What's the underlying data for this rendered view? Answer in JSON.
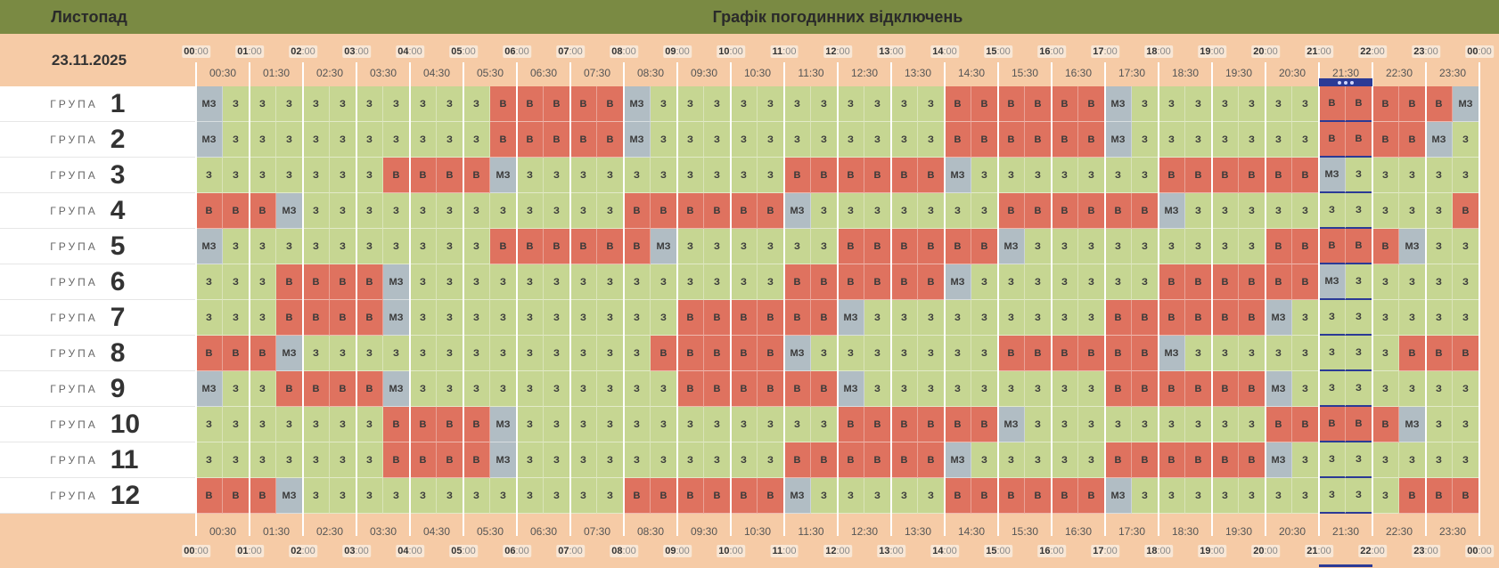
{
  "header": {
    "month": "Листопад",
    "title": "Графік погодинних відключень",
    "date": "23.11.2025"
  },
  "hours": [
    {
      "h": "00",
      "m": ":00"
    },
    {
      "h": "01",
      "m": ":00"
    },
    {
      "h": "02",
      "m": ":00"
    },
    {
      "h": "03",
      "m": ":00"
    },
    {
      "h": "04",
      "m": ":00"
    },
    {
      "h": "05",
      "m": ":00"
    },
    {
      "h": "06",
      "m": ":00"
    },
    {
      "h": "07",
      "m": ":00"
    },
    {
      "h": "08",
      "m": ":00"
    },
    {
      "h": "09",
      "m": ":00"
    },
    {
      "h": "10",
      "m": ":00"
    },
    {
      "h": "11",
      "m": ":00"
    },
    {
      "h": "12",
      "m": ":00"
    },
    {
      "h": "13",
      "m": ":00"
    },
    {
      "h": "14",
      "m": ":00"
    },
    {
      "h": "15",
      "m": ":00"
    },
    {
      "h": "16",
      "m": ":00"
    },
    {
      "h": "17",
      "m": ":00"
    },
    {
      "h": "18",
      "m": ":00"
    },
    {
      "h": "19",
      "m": ":00"
    },
    {
      "h": "20",
      "m": ":00"
    },
    {
      "h": "21",
      "m": ":00"
    },
    {
      "h": "22",
      "m": ":00"
    },
    {
      "h": "23",
      "m": ":00"
    },
    {
      "h": "00",
      "m": ":00"
    }
  ],
  "half_hours": [
    "00:30",
    "01:30",
    "02:30",
    "03:30",
    "04:30",
    "05:30",
    "06:30",
    "07:30",
    "08:30",
    "09:30",
    "10:30",
    "11:30",
    "12:30",
    "13:30",
    "14:30",
    "15:30",
    "16:30",
    "17:30",
    "18:30",
    "19:30",
    "20:30",
    "21:30",
    "22:30",
    "23:30"
  ],
  "groups": [
    {
      "label": "ГРУПА",
      "number": "1",
      "cells": [
        "МЗ",
        "З",
        "З",
        "З",
        "З",
        "З",
        "З",
        "З",
        "З",
        "З",
        "З",
        "В",
        "В",
        "В",
        "В",
        "В",
        "МЗ",
        "З",
        "З",
        "З",
        "З",
        "З",
        "З",
        "З",
        "З",
        "З",
        "З",
        "З",
        "В",
        "В",
        "В",
        "В",
        "В",
        "В",
        "МЗ",
        "З",
        "З",
        "З",
        "З",
        "З",
        "З",
        "З",
        "В",
        "В",
        "В",
        "В",
        "В",
        "МЗ"
      ]
    },
    {
      "label": "ГРУПА",
      "number": "2",
      "cells": [
        "МЗ",
        "З",
        "З",
        "З",
        "З",
        "З",
        "З",
        "З",
        "З",
        "З",
        "З",
        "В",
        "В",
        "В",
        "В",
        "В",
        "МЗ",
        "З",
        "З",
        "З",
        "З",
        "З",
        "З",
        "З",
        "З",
        "З",
        "З",
        "З",
        "В",
        "В",
        "В",
        "В",
        "В",
        "В",
        "МЗ",
        "З",
        "З",
        "З",
        "З",
        "З",
        "З",
        "З",
        "В",
        "В",
        "В",
        "В",
        "МЗ",
        "З"
      ]
    },
    {
      "label": "ГРУПА",
      "number": "3",
      "cells": [
        "З",
        "З",
        "З",
        "З",
        "З",
        "З",
        "З",
        "В",
        "В",
        "В",
        "В",
        "МЗ",
        "З",
        "З",
        "З",
        "З",
        "З",
        "З",
        "З",
        "З",
        "З",
        "З",
        "В",
        "В",
        "В",
        "В",
        "В",
        "В",
        "МЗ",
        "З",
        "З",
        "З",
        "З",
        "З",
        "З",
        "З",
        "В",
        "В",
        "В",
        "В",
        "В",
        "В",
        "МЗ",
        "З",
        "З",
        "З",
        "З",
        "З"
      ]
    },
    {
      "label": "ГРУПА",
      "number": "4",
      "cells": [
        "В",
        "В",
        "В",
        "МЗ",
        "З",
        "З",
        "З",
        "З",
        "З",
        "З",
        "З",
        "З",
        "З",
        "З",
        "З",
        "З",
        "В",
        "В",
        "В",
        "В",
        "В",
        "В",
        "МЗ",
        "З",
        "З",
        "З",
        "З",
        "З",
        "З",
        "З",
        "В",
        "В",
        "В",
        "В",
        "В",
        "В",
        "МЗ",
        "З",
        "З",
        "З",
        "З",
        "З",
        "З",
        "З",
        "З",
        "З",
        "З",
        "В"
      ]
    },
    {
      "label": "ГРУПА",
      "number": "5",
      "cells": [
        "МЗ",
        "З",
        "З",
        "З",
        "З",
        "З",
        "З",
        "З",
        "З",
        "З",
        "З",
        "В",
        "В",
        "В",
        "В",
        "В",
        "В",
        "МЗ",
        "З",
        "З",
        "З",
        "З",
        "З",
        "З",
        "В",
        "В",
        "В",
        "В",
        "В",
        "В",
        "МЗ",
        "З",
        "З",
        "З",
        "З",
        "З",
        "З",
        "З",
        "З",
        "З",
        "В",
        "В",
        "В",
        "В",
        "В",
        "МЗ",
        "З",
        "З"
      ]
    },
    {
      "label": "ГРУПА",
      "number": "6",
      "cells": [
        "З",
        "З",
        "З",
        "В",
        "В",
        "В",
        "В",
        "МЗ",
        "З",
        "З",
        "З",
        "З",
        "З",
        "З",
        "З",
        "З",
        "З",
        "З",
        "З",
        "З",
        "З",
        "З",
        "В",
        "В",
        "В",
        "В",
        "В",
        "В",
        "МЗ",
        "З",
        "З",
        "З",
        "З",
        "З",
        "З",
        "З",
        "В",
        "В",
        "В",
        "В",
        "В",
        "В",
        "МЗ",
        "З",
        "З",
        "З",
        "З",
        "З"
      ]
    },
    {
      "label": "ГРУПА",
      "number": "7",
      "cells": [
        "З",
        "З",
        "З",
        "В",
        "В",
        "В",
        "В",
        "МЗ",
        "З",
        "З",
        "З",
        "З",
        "З",
        "З",
        "З",
        "З",
        "З",
        "З",
        "В",
        "В",
        "В",
        "В",
        "В",
        "В",
        "МЗ",
        "З",
        "З",
        "З",
        "З",
        "З",
        "З",
        "З",
        "З",
        "З",
        "В",
        "В",
        "В",
        "В",
        "В",
        "В",
        "МЗ",
        "З",
        "З",
        "З",
        "З",
        "З",
        "З",
        "З"
      ]
    },
    {
      "label": "ГРУПА",
      "number": "8",
      "cells": [
        "В",
        "В",
        "В",
        "МЗ",
        "З",
        "З",
        "З",
        "З",
        "З",
        "З",
        "З",
        "З",
        "З",
        "З",
        "З",
        "З",
        "З",
        "В",
        "В",
        "В",
        "В",
        "В",
        "МЗ",
        "З",
        "З",
        "З",
        "З",
        "З",
        "З",
        "З",
        "В",
        "В",
        "В",
        "В",
        "В",
        "В",
        "МЗ",
        "З",
        "З",
        "З",
        "З",
        "З",
        "З",
        "З",
        "З",
        "В",
        "В",
        "В"
      ]
    },
    {
      "label": "ГРУПА",
      "number": "9",
      "cells": [
        "МЗ",
        "З",
        "З",
        "В",
        "В",
        "В",
        "В",
        "МЗ",
        "З",
        "З",
        "З",
        "З",
        "З",
        "З",
        "З",
        "З",
        "З",
        "З",
        "В",
        "В",
        "В",
        "В",
        "В",
        "В",
        "МЗ",
        "З",
        "З",
        "З",
        "З",
        "З",
        "З",
        "З",
        "З",
        "З",
        "В",
        "В",
        "В",
        "В",
        "В",
        "В",
        "МЗ",
        "З",
        "З",
        "З",
        "З",
        "З",
        "З",
        "З"
      ]
    },
    {
      "label": "ГРУПА",
      "number": "10",
      "cells": [
        "З",
        "З",
        "З",
        "З",
        "З",
        "З",
        "З",
        "В",
        "В",
        "В",
        "В",
        "МЗ",
        "З",
        "З",
        "З",
        "З",
        "З",
        "З",
        "З",
        "З",
        "З",
        "З",
        "З",
        "З",
        "В",
        "В",
        "В",
        "В",
        "В",
        "В",
        "МЗ",
        "З",
        "З",
        "З",
        "З",
        "З",
        "З",
        "З",
        "З",
        "З",
        "В",
        "В",
        "В",
        "В",
        "В",
        "МЗ",
        "З",
        "З"
      ]
    },
    {
      "label": "ГРУПА",
      "number": "11",
      "cells": [
        "З",
        "З",
        "З",
        "З",
        "З",
        "З",
        "З",
        "В",
        "В",
        "В",
        "В",
        "МЗ",
        "З",
        "З",
        "З",
        "З",
        "З",
        "З",
        "З",
        "З",
        "З",
        "З",
        "В",
        "В",
        "В",
        "В",
        "В",
        "В",
        "МЗ",
        "З",
        "З",
        "З",
        "З",
        "З",
        "В",
        "В",
        "В",
        "В",
        "В",
        "В",
        "МЗ",
        "З",
        "З",
        "З",
        "З",
        "З",
        "З",
        "З"
      ]
    },
    {
      "label": "ГРУПА",
      "number": "12",
      "cells": [
        "В",
        "В",
        "В",
        "МЗ",
        "З",
        "З",
        "З",
        "З",
        "З",
        "З",
        "З",
        "З",
        "З",
        "З",
        "З",
        "З",
        "В",
        "В",
        "В",
        "В",
        "В",
        "В",
        "МЗ",
        "З",
        "З",
        "З",
        "З",
        "З",
        "В",
        "В",
        "В",
        "В",
        "В",
        "В",
        "МЗ",
        "З",
        "З",
        "З",
        "З",
        "З",
        "З",
        "З",
        "З",
        "З",
        "З",
        "В",
        "В",
        "В"
      ]
    }
  ]
}
